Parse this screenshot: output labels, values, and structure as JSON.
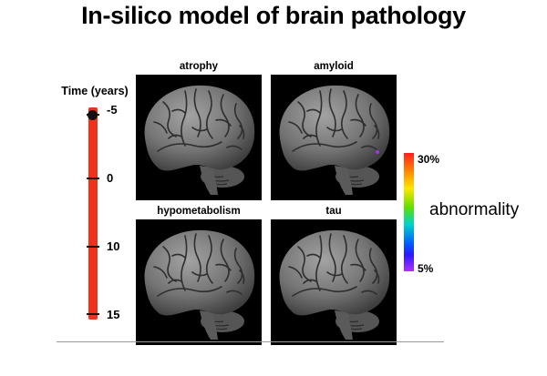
{
  "title": "In-silico model of brain pathology",
  "timeline": {
    "label": "Time (years)",
    "ticks": [
      "-5",
      "0",
      "10",
      "15"
    ]
  },
  "panels": [
    {
      "label": "atrophy"
    },
    {
      "label": "amyloid"
    },
    {
      "label": "hypometabolism"
    },
    {
      "label": "tau"
    }
  ],
  "colorbar": {
    "max_label": "30%",
    "min_label": "5%",
    "label": "abnormality",
    "colors": [
      "#ff1e1e",
      "#ff8a00",
      "#ffe600",
      "#5fe000",
      "#00d4c8",
      "#0060ff",
      "#b030ff"
    ]
  },
  "brain_colors": {
    "background": "#000000",
    "cortex": "#7a7a7a",
    "sulcus": "#2e2e2e",
    "highlight_abnormality": "#b030ff"
  }
}
